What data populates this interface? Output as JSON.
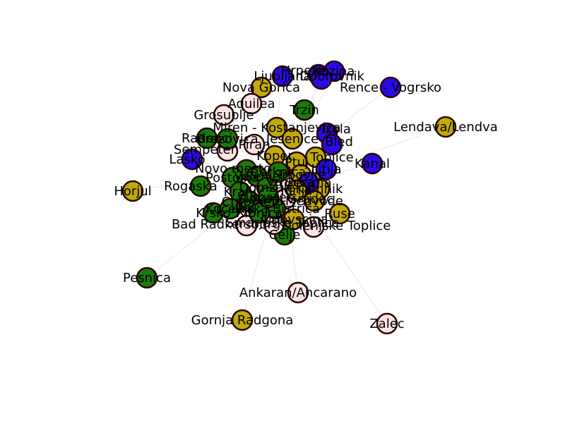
{
  "graph": {
    "colors": {
      "green": "#1a7a0a",
      "olive": "#c2aa0a",
      "blue": "#2a0ae6",
      "pink": "#ffe4e4",
      "stroke": "#2a0505",
      "edge": "#e8e8e8"
    },
    "nodes": [
      {
        "id": "horjul",
        "label": "Horjul",
        "color": "olive"
      },
      {
        "id": "pesnica",
        "label": "Pesnica",
        "color": "green"
      },
      {
        "id": "gornja-radgona",
        "label": "Gornja Radgona",
        "color": "olive"
      },
      {
        "id": "ankaran",
        "label": "Ankaran/Ancarano",
        "color": "pink"
      },
      {
        "id": "zalec",
        "label": "Zalec",
        "color": "pink"
      },
      {
        "id": "lendava",
        "label": "Lendava/Lendva",
        "color": "olive"
      },
      {
        "id": "rence",
        "label": "Rence - Vogrsko",
        "color": "blue"
      },
      {
        "id": "kozina",
        "label": "Kozina",
        "color": "blue"
      },
      {
        "id": "hrpelje",
        "label": "Hrpelje",
        "color": "blue"
      },
      {
        "id": "ljubljana",
        "label": "Ljubljana",
        "color": "blue"
      },
      {
        "id": "dobrovnik",
        "label": "Dobrovnik",
        "color": "blue"
      },
      {
        "id": "nova-gorica",
        "label": "Nova Gorica",
        "color": "olive"
      },
      {
        "id": "aquilea",
        "label": "Aquilea",
        "color": "pink"
      },
      {
        "id": "grosuplje",
        "label": "Grosuplje",
        "color": "pink"
      },
      {
        "id": "trzin",
        "label": "Trzin",
        "color": "green"
      },
      {
        "id": "miren",
        "label": "Miren - Kostanjevica",
        "color": "olive"
      },
      {
        "id": "radenci",
        "label": "Radenci",
        "color": "green"
      },
      {
        "id": "sempeter",
        "label": "Sempeter",
        "color": "pink"
      },
      {
        "id": "lasko",
        "label": "Lasko",
        "color": "blue"
      },
      {
        "id": "kanal",
        "label": "Kanal",
        "color": "blue"
      },
      {
        "id": "izola",
        "label": "Izola",
        "color": "blue"
      },
      {
        "id": "bled",
        "label": "Bled",
        "color": "blue"
      },
      {
        "id": "toplice",
        "label": "Toplice",
        "color": "olive"
      },
      {
        "id": "ruse",
        "label": "Ruse",
        "color": "olive"
      },
      {
        "id": "rogaska",
        "label": "Rogaska",
        "color": "green"
      },
      {
        "id": "krsko",
        "label": "Krsko",
        "color": "green"
      },
      {
        "id": "bad-radkersburg",
        "label": "Bad Radkersburg",
        "color": "pink"
      },
      {
        "id": "dolenjske-toplice",
        "label": "Dolenjske Toplice",
        "color": "pink"
      },
      {
        "id": "celje",
        "label": "Celje",
        "color": "green"
      },
      {
        "id": "smarjeske",
        "label": "Smarjeske Toplice",
        "color": "pink"
      },
      {
        "id": "novo-mesto",
        "label": "Novo mesto",
        "color": "green"
      },
      {
        "id": "brezovica",
        "label": "Brezovica",
        "color": "green"
      },
      {
        "id": "jesenice",
        "label": "Jesenice",
        "color": "olive"
      },
      {
        "id": "piran",
        "label": "Piran",
        "color": "pink"
      },
      {
        "id": "koper",
        "label": "Koper",
        "color": "olive"
      },
      {
        "id": "postojna",
        "label": "Postojna",
        "color": "green"
      },
      {
        "id": "kranj",
        "label": "Kranj",
        "color": "green"
      },
      {
        "id": "ptuj",
        "label": "Ptuj",
        "color": "olive"
      },
      {
        "id": "velenje",
        "label": "Velenje",
        "color": "green"
      },
      {
        "id": "kamnik",
        "label": "Kamnik",
        "color": "olive"
      },
      {
        "id": "domzale",
        "label": "Domzale",
        "color": "green"
      },
      {
        "id": "litija",
        "label": "Litija",
        "color": "blue"
      },
      {
        "id": "vrhnika",
        "label": "Vrhnika",
        "color": "pink"
      },
      {
        "id": "trbovlje",
        "label": "Trbovlje",
        "color": "olive"
      },
      {
        "id": "cerknica",
        "label": "Cerknica",
        "color": "green"
      },
      {
        "id": "slovenj",
        "label": "Slovenj Gradec",
        "color": "pink"
      },
      {
        "id": "crnomelj",
        "label": "Crnomelj",
        "color": "green"
      },
      {
        "id": "medvode",
        "label": "Medvode",
        "color": "olive"
      },
      {
        "id": "ilirska",
        "label": "Ilirska Bistrica",
        "color": "green"
      },
      {
        "id": "ajdovscina",
        "label": "Ajdovscina",
        "color": "olive"
      },
      {
        "id": "sezana",
        "label": "Sezana",
        "color": "blue"
      },
      {
        "id": "kocevje",
        "label": "Kocevje",
        "color": "green"
      },
      {
        "id": "ribnica",
        "label": "Ribnica",
        "color": "green"
      },
      {
        "id": "logatec",
        "label": "Logatec",
        "color": "green"
      },
      {
        "id": "idrija",
        "label": "Idrija",
        "color": "olive"
      }
    ]
  }
}
